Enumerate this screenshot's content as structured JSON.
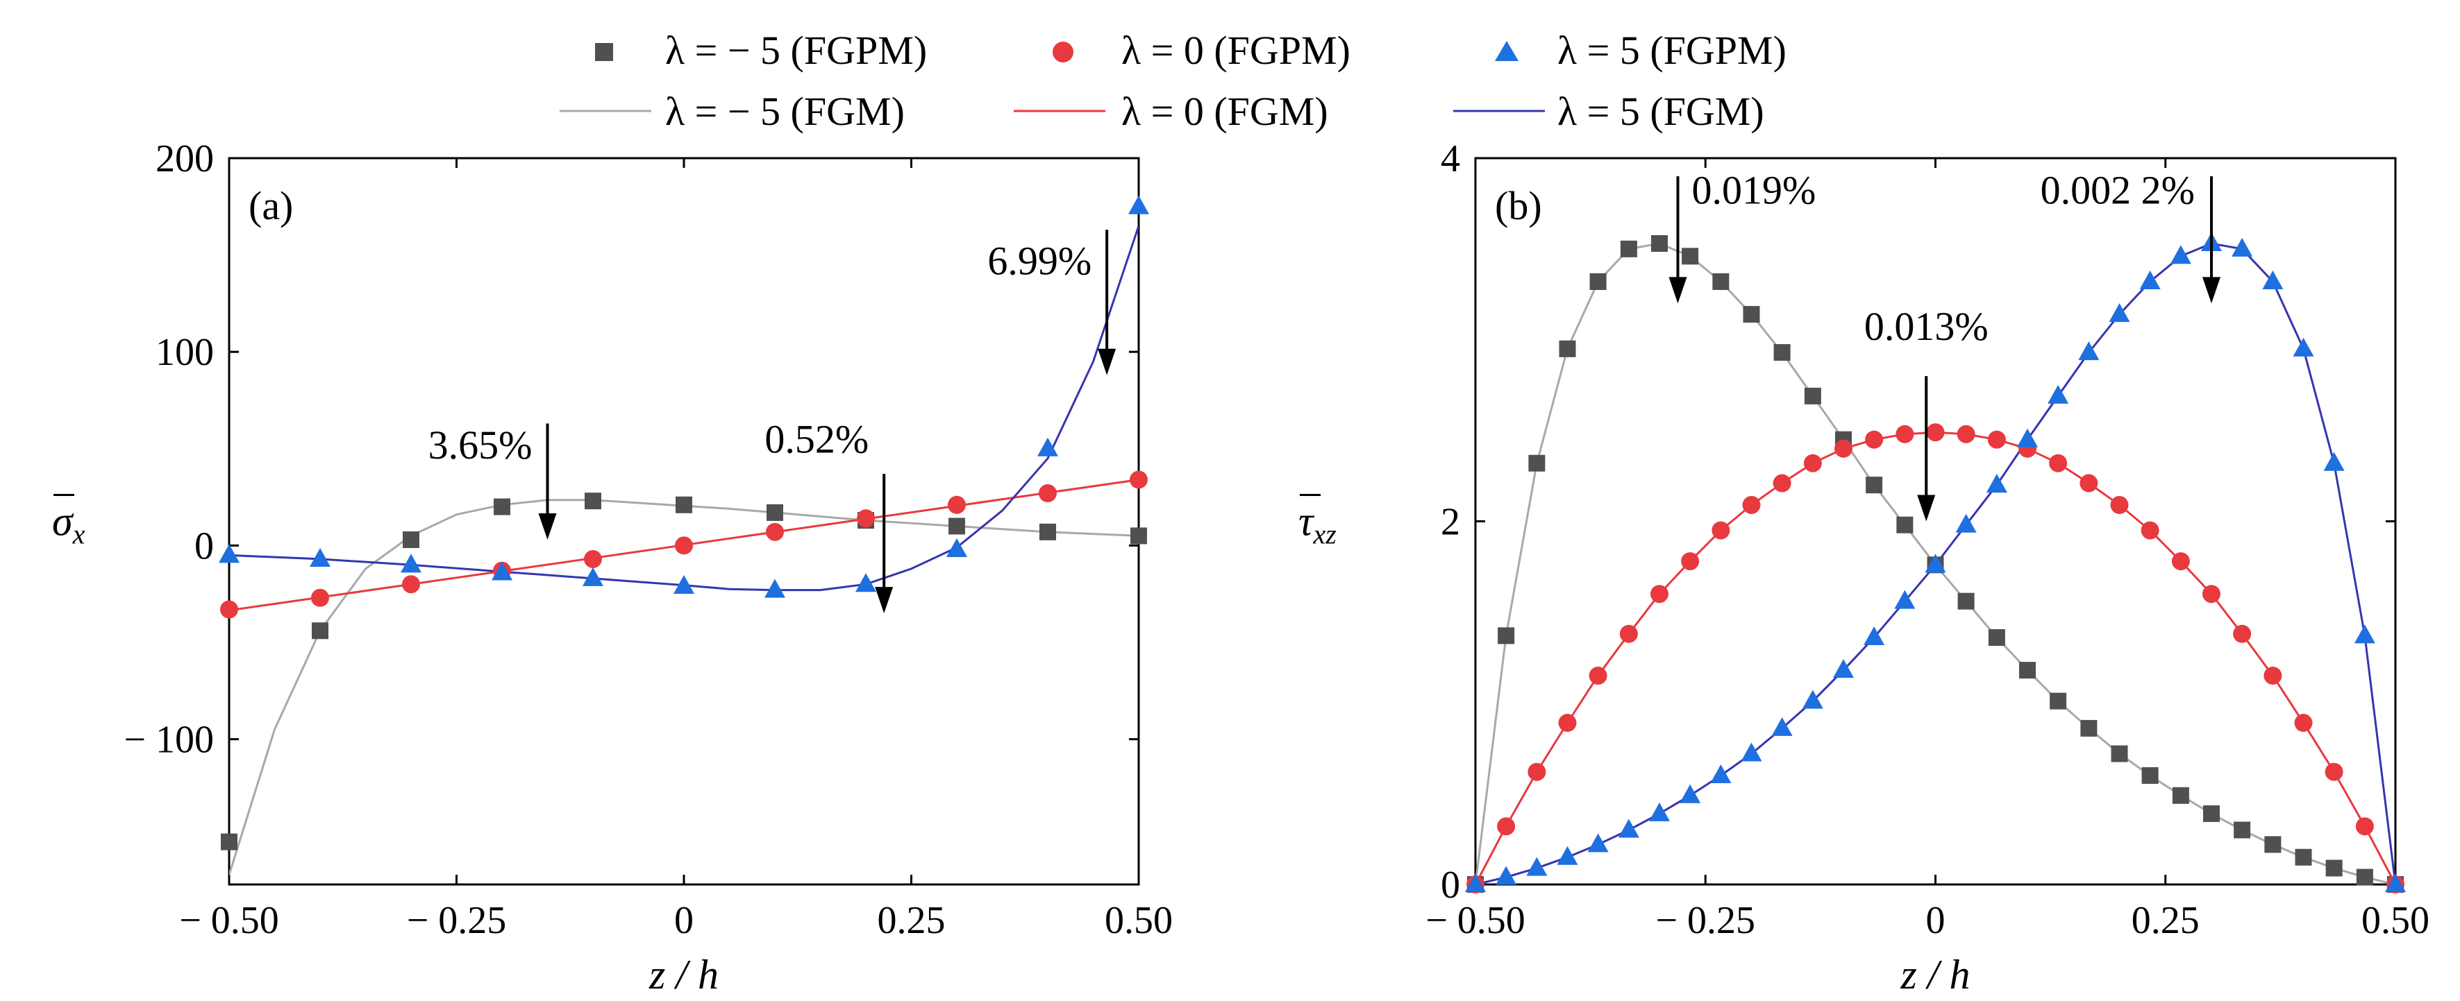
{
  "legend": {
    "items": [
      {
        "key": "m5_fgpm",
        "label": "λ = − 5 (FGPM)",
        "kind": "marker",
        "marker": "square",
        "color": "#505050"
      },
      {
        "key": "z0_fgpm",
        "label": "λ = 0 (FGPM)",
        "kind": "marker",
        "marker": "circle",
        "color": "#e8393f"
      },
      {
        "key": "p5_fgpm",
        "label": "λ = 5 (FGPM)",
        "kind": "marker",
        "marker": "triangle",
        "color": "#1e6fe0"
      },
      {
        "key": "m5_fgm",
        "label": "λ = − 5 (FGM)",
        "kind": "line",
        "color": "#a8a8a8"
      },
      {
        "key": "z0_fgm",
        "label": "λ = 0 (FGM)",
        "kind": "line",
        "color": "#e8393f"
      },
      {
        "key": "p5_fgm",
        "label": "λ = 5 (FGM)",
        "kind": "line",
        "color": "#3535b0"
      }
    ]
  },
  "chart_data": [
    {
      "type": "scatter",
      "panel_label": "(a)",
      "xlabel": "z / h",
      "ylabel": "σx",
      "xlim": [
        -0.5,
        0.5
      ],
      "ylim": [
        -175,
        200
      ],
      "xticks": [
        -0.5,
        -0.25,
        0,
        0.25,
        0.5
      ],
      "xtick_labels": [
        "− 0.50",
        "− 0.25",
        "0",
        "0.25",
        "0.50"
      ],
      "yticks": [
        -100,
        0,
        100,
        200
      ],
      "ytick_labels": [
        "− 100",
        "0",
        "100",
        "200"
      ],
      "grid": false,
      "series": [
        {
          "key": "m5",
          "marker": "square",
          "line_color": "#a8a8a8",
          "marker_color": "#505050",
          "x": [
            -0.5,
            -0.4,
            -0.3,
            -0.2,
            -0.1,
            0,
            0.1,
            0.2,
            0.3,
            0.4,
            0.5
          ],
          "y": [
            -153,
            -44,
            3,
            20,
            23,
            21,
            17,
            13,
            10,
            7,
            5
          ],
          "curve": [
            [
              -0.5,
              -170
            ],
            [
              -0.45,
              -95
            ],
            [
              -0.4,
              -44
            ],
            [
              -0.35,
              -12
            ],
            [
              -0.3,
              5
            ],
            [
              -0.25,
              16
            ],
            [
              -0.2,
              21
            ],
            [
              -0.15,
              23.5
            ],
            [
              -0.1,
              23.5
            ],
            [
              -0.05,
              22
            ],
            [
              0,
              20.5
            ],
            [
              0.05,
              19
            ],
            [
              0.1,
              17
            ],
            [
              0.15,
              15
            ],
            [
              0.2,
              13
            ],
            [
              0.25,
              11.5
            ],
            [
              0.3,
              10
            ],
            [
              0.35,
              8.5
            ],
            [
              0.4,
              7
            ],
            [
              0.45,
              6
            ],
            [
              0.5,
              5
            ]
          ]
        },
        {
          "key": "z0",
          "marker": "circle",
          "line_color": "#e8393f",
          "marker_color": "#e8393f",
          "x": [
            -0.5,
            -0.4,
            -0.3,
            -0.2,
            -0.1,
            0,
            0.1,
            0.2,
            0.3,
            0.4,
            0.5
          ],
          "y": [
            -33,
            -27,
            -20,
            -13,
            -7,
            0,
            7,
            14,
            21,
            27,
            34
          ],
          "curve": [
            [
              -0.5,
              -33.5
            ],
            [
              0.5,
              34
            ]
          ]
        },
        {
          "key": "p5",
          "marker": "triangle",
          "line_color": "#3535b0",
          "marker_color": "#1e6fe0",
          "x": [
            -0.5,
            -0.4,
            -0.3,
            -0.2,
            -0.1,
            0,
            0.1,
            0.2,
            0.3,
            0.4,
            0.5
          ],
          "y": [
            -5,
            -7,
            -10,
            -14,
            -17,
            -21,
            -23,
            -20,
            -2,
            50,
            175
          ],
          "curve": [
            [
              -0.5,
              -5
            ],
            [
              -0.4,
              -7
            ],
            [
              -0.3,
              -10
            ],
            [
              -0.2,
              -13.5
            ],
            [
              -0.1,
              -17
            ],
            [
              0,
              -20.5
            ],
            [
              0.05,
              -22.5
            ],
            [
              0.1,
              -23
            ],
            [
              0.15,
              -23
            ],
            [
              0.2,
              -20
            ],
            [
              0.25,
              -12
            ],
            [
              0.3,
              -1
            ],
            [
              0.35,
              18
            ],
            [
              0.4,
              45
            ],
            [
              0.45,
              95
            ],
            [
              0.5,
              165
            ]
          ]
        }
      ],
      "annotations": [
        {
          "text": "3.65%",
          "x": -0.15,
          "y_text": 45,
          "y_from": 63,
          "y_to": 3
        },
        {
          "text": "0.52%",
          "x": 0.22,
          "y_text": 48,
          "y_from": 37,
          "y_to": -35
        },
        {
          "text": "6.99%",
          "x": 0.465,
          "y_text": 140,
          "y_from": 163,
          "y_to": 88
        }
      ]
    },
    {
      "type": "scatter",
      "panel_label": "(b)",
      "xlabel": "z / h",
      "ylabel": "τxz",
      "xlim": [
        -0.5,
        0.5
      ],
      "ylim": [
        0,
        4
      ],
      "xticks": [
        -0.5,
        -0.25,
        0,
        0.25,
        0.5
      ],
      "xtick_labels": [
        "− 0.50",
        "− 0.25",
        "0",
        "0.25",
        "0.50"
      ],
      "yticks": [
        0,
        2,
        4
      ],
      "ytick_labels": [
        "0",
        "2",
        "4"
      ],
      "grid": false,
      "series": [
        {
          "key": "m5",
          "marker": "square",
          "line_color": "#a8a8a8",
          "marker_color": "#505050",
          "x": [
            -0.5,
            -0.4667,
            -0.4333,
            -0.4,
            -0.3667,
            -0.3333,
            -0.3,
            -0.2667,
            -0.2333,
            -0.2,
            -0.1667,
            -0.1333,
            -0.1,
            -0.0667,
            -0.0333,
            0,
            0.0333,
            0.0667,
            0.1,
            0.1333,
            0.1667,
            0.2,
            0.2333,
            0.2667,
            0.3,
            0.3333,
            0.3667,
            0.4,
            0.4333,
            0.4667,
            0.5
          ],
          "y": [
            0,
            1.37,
            2.32,
            2.95,
            3.32,
            3.5,
            3.53,
            3.46,
            3.32,
            3.14,
            2.93,
            2.69,
            2.45,
            2.2,
            1.98,
            1.76,
            1.56,
            1.36,
            1.18,
            1.01,
            0.86,
            0.72,
            0.6,
            0.49,
            0.39,
            0.3,
            0.22,
            0.15,
            0.09,
            0.04,
            0
          ]
        },
        {
          "key": "z0",
          "marker": "circle",
          "line_color": "#e8393f",
          "marker_color": "#e8393f",
          "x": [
            -0.5,
            -0.4667,
            -0.4333,
            -0.4,
            -0.3667,
            -0.3333,
            -0.3,
            -0.2667,
            -0.2333,
            -0.2,
            -0.1667,
            -0.1333,
            -0.1,
            -0.0667,
            -0.0333,
            0,
            0.0333,
            0.0667,
            0.1,
            0.1333,
            0.1667,
            0.2,
            0.2333,
            0.2667,
            0.3,
            0.3333,
            0.3667,
            0.4,
            0.4333,
            0.4667,
            0.5
          ],
          "y": [
            0,
            0.32,
            0.62,
            0.89,
            1.15,
            1.38,
            1.6,
            1.78,
            1.95,
            2.09,
            2.21,
            2.32,
            2.4,
            2.45,
            2.48,
            2.49,
            2.48,
            2.45,
            2.4,
            2.32,
            2.21,
            2.09,
            1.95,
            1.78,
            1.6,
            1.38,
            1.15,
            0.89,
            0.62,
            0.32,
            0
          ]
        },
        {
          "key": "p5",
          "marker": "triangle",
          "line_color": "#3535b0",
          "marker_color": "#1e6fe0",
          "x": [
            -0.5,
            -0.4667,
            -0.4333,
            -0.4,
            -0.3667,
            -0.3333,
            -0.3,
            -0.2667,
            -0.2333,
            -0.2,
            -0.1667,
            -0.1333,
            -0.1,
            -0.0667,
            -0.0333,
            0,
            0.0333,
            0.0667,
            0.1,
            0.1333,
            0.1667,
            0.2,
            0.2333,
            0.2667,
            0.3,
            0.3333,
            0.3667,
            0.4,
            0.4333,
            0.4667,
            0.5
          ],
          "y": [
            0,
            0.04,
            0.09,
            0.15,
            0.22,
            0.3,
            0.39,
            0.49,
            0.6,
            0.72,
            0.86,
            1.01,
            1.18,
            1.36,
            1.56,
            1.76,
            1.98,
            2.2,
            2.45,
            2.69,
            2.93,
            3.14,
            3.32,
            3.46,
            3.53,
            3.5,
            3.32,
            2.95,
            2.32,
            1.37,
            0
          ]
        }
      ],
      "annotations": [
        {
          "text": "0.019%",
          "x": -0.28,
          "y_text": 3.75,
          "y_from": 3.9,
          "y_to": 3.2
        },
        {
          "text": "0.013%",
          "x": -0.01,
          "y_text": 3.0,
          "y_from": 2.8,
          "y_to": 2.0
        },
        {
          "text": "0.002 2%",
          "x": 0.3,
          "y_text": 3.75,
          "y_from": 3.9,
          "y_to": 3.2
        }
      ]
    }
  ]
}
